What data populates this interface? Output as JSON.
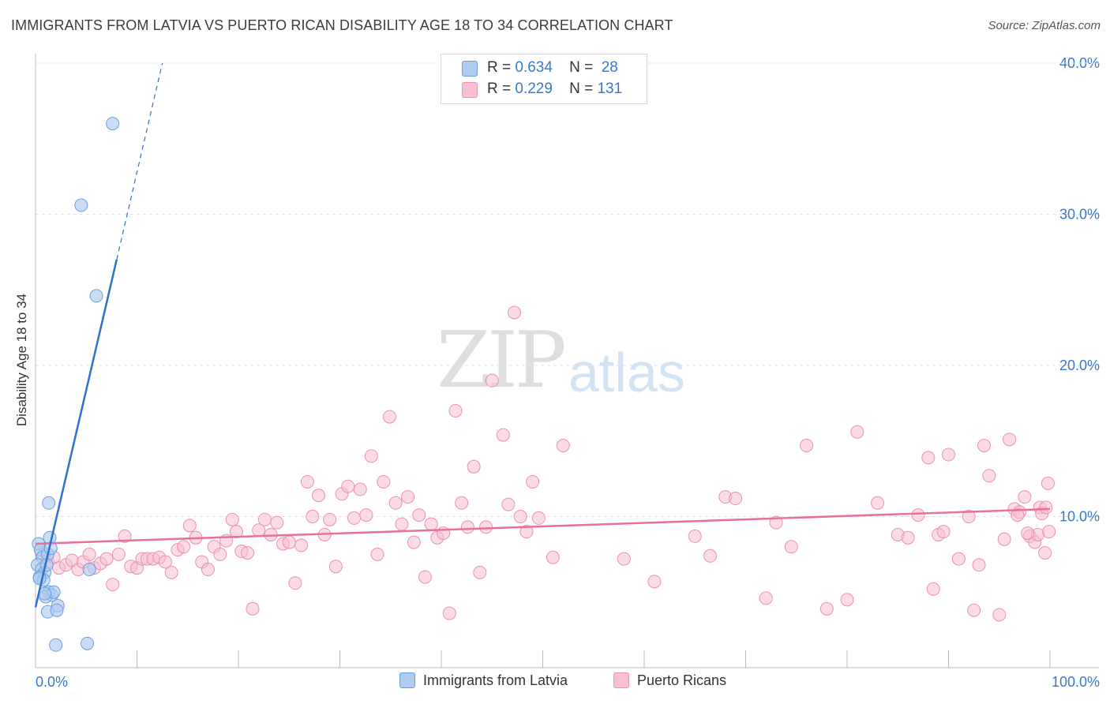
{
  "title": "IMMIGRANTS FROM LATVIA VS PUERTO RICAN DISABILITY AGE 18 TO 34 CORRELATION CHART",
  "source": "Source: ZipAtlas.com",
  "watermark": {
    "zip": "ZIP",
    "atlas": "atlas"
  },
  "legend": {
    "latvia": {
      "r_label": "R =",
      "r_value": "0.634",
      "n_label": "N =",
      "n_value": "28"
    },
    "puerto": {
      "r_label": "R =",
      "r_value": "0.229",
      "n_label": "N =",
      "n_value": "131"
    }
  },
  "colors": {
    "latvia_fill": "#aecbf0",
    "latvia_stroke": "#6b9fdc",
    "latvia_line": "#2f6fcf",
    "puerto_fill": "#f7c0d2",
    "puerto_stroke": "#ec8fb0",
    "puerto_line": "#e8709b",
    "tick_text": "#3a78c9"
  },
  "chart_data": {
    "type": "scatter",
    "title": "IMMIGRANTS FROM LATVIA VS PUERTO RICAN DISABILITY AGE 18 TO 34 CORRELATION CHART",
    "xlabel": "",
    "ylabel": "Disability Age 18 to 34",
    "xlim": [
      0,
      100
    ],
    "ylim": [
      0,
      40
    ],
    "x_tick_labels": [
      "0.0%",
      "100.0%"
    ],
    "y_ticks": [
      10,
      20,
      30,
      40
    ],
    "y_tick_labels": [
      "10.0%",
      "20.0%",
      "30.0%",
      "40.0%"
    ],
    "legend_entries": [
      "Immigrants from Latvia",
      "Puerto Ricans"
    ],
    "series": [
      {
        "name": "Immigrants from Latvia",
        "r": 0.634,
        "n": 28,
        "trend": {
          "x0": 0.0,
          "y0": 4.0,
          "x1": 8.0,
          "y1": 27.0,
          "dash_to_x": 12.5,
          "dash_to_y": 40.0
        },
        "points": [
          [
            0.3,
            8.2
          ],
          [
            0.5,
            7.8
          ],
          [
            0.7,
            7.3
          ],
          [
            0.2,
            6.8
          ],
          [
            0.6,
            6.5
          ],
          [
            0.9,
            6.3
          ],
          [
            0.4,
            6.0
          ],
          [
            0.8,
            5.8
          ],
          [
            1.2,
            7.5
          ],
          [
            1.5,
            7.9
          ],
          [
            1.3,
            5.0
          ],
          [
            1.6,
            4.8
          ],
          [
            1.0,
            4.7
          ],
          [
            1.8,
            5.0
          ],
          [
            2.2,
            4.1
          ],
          [
            1.2,
            3.7
          ],
          [
            2.1,
            3.8
          ],
          [
            1.3,
            10.9
          ],
          [
            1.4,
            8.6
          ],
          [
            1.1,
            6.8
          ],
          [
            0.4,
            5.9
          ],
          [
            0.9,
            4.9
          ],
          [
            2.0,
            1.5
          ],
          [
            5.1,
            1.6
          ],
          [
            5.3,
            6.5
          ],
          [
            6.0,
            24.6
          ],
          [
            4.5,
            30.6
          ],
          [
            7.6,
            36.0
          ]
        ]
      },
      {
        "name": "Puerto Ricans",
        "r": 0.229,
        "n": 131,
        "trend": {
          "x0": 0.0,
          "y0": 8.2,
          "x1": 100.0,
          "y1": 10.5
        },
        "points": [
          [
            0.6,
            7.6
          ],
          [
            1.2,
            7.0
          ],
          [
            1.8,
            7.3
          ],
          [
            2.3,
            6.6
          ],
          [
            3.0,
            6.8
          ],
          [
            3.6,
            7.1
          ],
          [
            4.2,
            6.5
          ],
          [
            4.7,
            7.0
          ],
          [
            5.3,
            7.5
          ],
          [
            5.8,
            6.6
          ],
          [
            6.4,
            6.9
          ],
          [
            7.0,
            7.2
          ],
          [
            7.6,
            5.5
          ],
          [
            8.2,
            7.5
          ],
          [
            8.8,
            8.7
          ],
          [
            9.4,
            6.7
          ],
          [
            10.0,
            6.6
          ],
          [
            10.5,
            7.2
          ],
          [
            11.0,
            7.2
          ],
          [
            11.6,
            7.2
          ],
          [
            12.2,
            7.3
          ],
          [
            12.8,
            7.0
          ],
          [
            13.4,
            6.3
          ],
          [
            14.0,
            7.8
          ],
          [
            14.6,
            8.0
          ],
          [
            15.2,
            9.4
          ],
          [
            15.8,
            8.6
          ],
          [
            16.4,
            7.0
          ],
          [
            17.0,
            6.5
          ],
          [
            17.6,
            8.0
          ],
          [
            18.2,
            7.5
          ],
          [
            18.8,
            8.4
          ],
          [
            19.4,
            9.8
          ],
          [
            19.8,
            9.0
          ],
          [
            20.3,
            7.7
          ],
          [
            20.9,
            7.6
          ],
          [
            21.4,
            3.9
          ],
          [
            22.0,
            9.1
          ],
          [
            22.6,
            9.8
          ],
          [
            23.2,
            8.8
          ],
          [
            23.8,
            9.6
          ],
          [
            24.4,
            8.2
          ],
          [
            25.0,
            8.3
          ],
          [
            25.6,
            5.6
          ],
          [
            26.2,
            8.1
          ],
          [
            26.8,
            12.3
          ],
          [
            27.3,
            10.0
          ],
          [
            27.9,
            11.4
          ],
          [
            28.5,
            8.8
          ],
          [
            29.0,
            9.8
          ],
          [
            29.6,
            6.7
          ],
          [
            30.2,
            11.5
          ],
          [
            30.8,
            12.0
          ],
          [
            31.4,
            9.9
          ],
          [
            32.0,
            11.8
          ],
          [
            32.6,
            10.1
          ],
          [
            33.1,
            14.0
          ],
          [
            33.7,
            7.5
          ],
          [
            34.3,
            12.3
          ],
          [
            34.9,
            16.6
          ],
          [
            35.5,
            10.9
          ],
          [
            36.1,
            9.5
          ],
          [
            36.7,
            11.3
          ],
          [
            37.3,
            8.3
          ],
          [
            37.8,
            10.1
          ],
          [
            38.4,
            6.0
          ],
          [
            39.0,
            9.5
          ],
          [
            39.6,
            8.6
          ],
          [
            40.2,
            8.9
          ],
          [
            40.8,
            3.6
          ],
          [
            41.4,
            17.0
          ],
          [
            42.0,
            10.9
          ],
          [
            42.6,
            9.3
          ],
          [
            43.2,
            13.3
          ],
          [
            43.8,
            6.3
          ],
          [
            44.4,
            9.3
          ],
          [
            45.0,
            19.0
          ],
          [
            46.1,
            15.4
          ],
          [
            46.6,
            10.8
          ],
          [
            47.2,
            23.5
          ],
          [
            47.8,
            10.0
          ],
          [
            48.4,
            9.0
          ],
          [
            49.0,
            12.3
          ],
          [
            49.6,
            9.9
          ],
          [
            51.0,
            7.3
          ],
          [
            52.0,
            14.7
          ],
          [
            58.0,
            7.2
          ],
          [
            61.0,
            5.7
          ],
          [
            65.0,
            8.7
          ],
          [
            66.5,
            7.4
          ],
          [
            68.0,
            11.3
          ],
          [
            69.0,
            11.2
          ],
          [
            72.0,
            4.6
          ],
          [
            73.0,
            9.6
          ],
          [
            74.5,
            8.0
          ],
          [
            76.0,
            14.7
          ],
          [
            78.0,
            3.9
          ],
          [
            80.0,
            4.5
          ],
          [
            81.0,
            15.6
          ],
          [
            83.0,
            10.9
          ],
          [
            85.0,
            8.8
          ],
          [
            86.0,
            8.6
          ],
          [
            87.0,
            10.1
          ],
          [
            88.0,
            13.9
          ],
          [
            88.5,
            5.2
          ],
          [
            89.0,
            8.8
          ],
          [
            89.5,
            9.0
          ],
          [
            90.0,
            14.1
          ],
          [
            91.0,
            7.2
          ],
          [
            92.0,
            10.0
          ],
          [
            92.5,
            3.8
          ],
          [
            93.0,
            6.8
          ],
          [
            93.5,
            14.7
          ],
          [
            94.0,
            12.7
          ],
          [
            95.0,
            3.5
          ],
          [
            95.5,
            8.5
          ],
          [
            96.0,
            15.1
          ],
          [
            96.5,
            10.5
          ],
          [
            97.0,
            10.3
          ],
          [
            97.5,
            11.3
          ],
          [
            98.0,
            8.7
          ],
          [
            98.5,
            8.3
          ],
          [
            99.0,
            10.6
          ],
          [
            99.5,
            7.6
          ],
          [
            99.8,
            12.2
          ],
          [
            99.2,
            10.2
          ],
          [
            98.8,
            8.8
          ],
          [
            97.8,
            8.9
          ],
          [
            96.8,
            10.1
          ],
          [
            99.6,
            10.6
          ],
          [
            99.9,
            9.0
          ]
        ]
      }
    ]
  }
}
